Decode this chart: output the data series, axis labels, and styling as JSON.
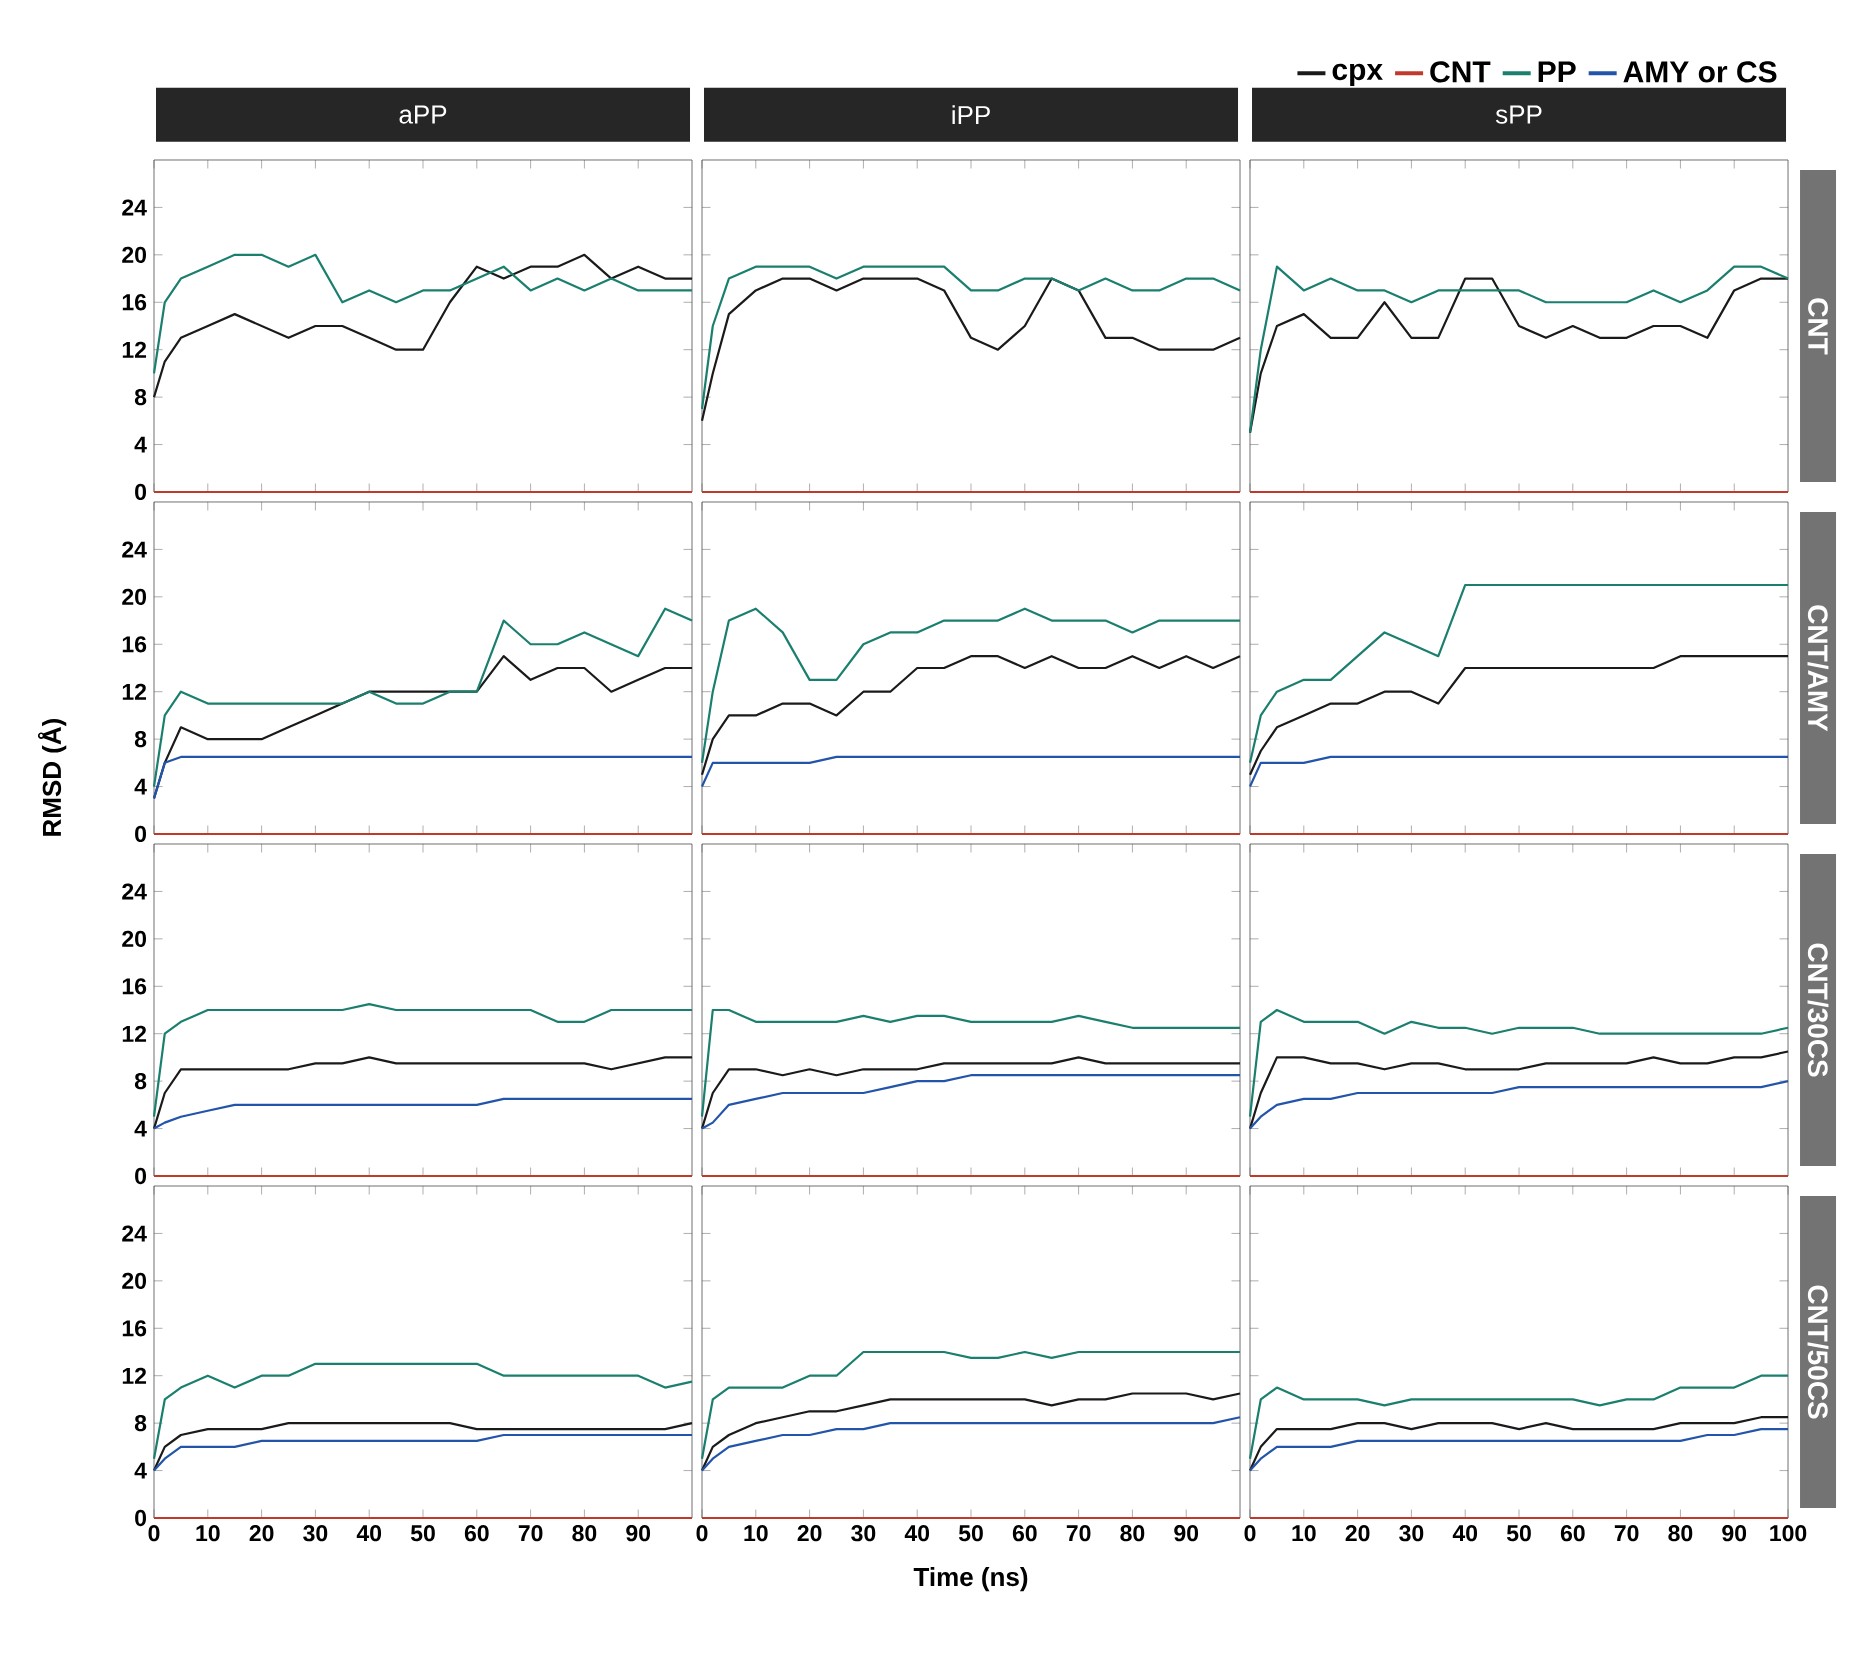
{
  "chart_data": [
    {
      "type": "line",
      "title": "aPP",
      "x": [
        0,
        2,
        5,
        10,
        15,
        20,
        25,
        30,
        35,
        40,
        45,
        50,
        55,
        60,
        65,
        70,
        75,
        80,
        85,
        90,
        95,
        100
      ],
      "xlim": [
        0,
        100
      ],
      "ylim": [
        0,
        28
      ],
      "xticks": [
        0,
        10,
        20,
        30,
        40,
        50,
        60,
        70,
        80,
        90
      ],
      "yticks": [
        0,
        4,
        8,
        12,
        16,
        20,
        24
      ],
      "tick_labels": "y",
      "series": [
        {
          "color": "#1a1a1a",
          "values": [
            8,
            11,
            13,
            14,
            15,
            14,
            13,
            14,
            14,
            13,
            12,
            12,
            16,
            19,
            18,
            19,
            19,
            20,
            18,
            19,
            18,
            18
          ]
        },
        {
          "color": "#c0392b",
          "values": [
            0,
            0,
            0,
            0,
            0,
            0,
            0,
            0,
            0,
            0,
            0,
            0,
            0,
            0,
            0,
            0,
            0,
            0,
            0,
            0,
            0,
            0
          ]
        },
        {
          "color": "#1a7f6e",
          "values": [
            10,
            16,
            18,
            19,
            20,
            20,
            19,
            20,
            16,
            17,
            16,
            17,
            17,
            18,
            19,
            17,
            18,
            17,
            18,
            17,
            17,
            17
          ]
        }
      ]
    },
    {
      "type": "line",
      "title": "iPP",
      "x": [
        0,
        2,
        5,
        10,
        15,
        20,
        25,
        30,
        35,
        40,
        45,
        50,
        55,
        60,
        65,
        70,
        75,
        80,
        85,
        90,
        95,
        100
      ],
      "xlim": [
        0,
        100
      ],
      "ylim": [
        0,
        28
      ],
      "xticks": [
        0,
        10,
        20,
        30,
        40,
        50,
        60,
        70,
        80,
        90
      ],
      "yticks": [
        0,
        4,
        8,
        12,
        16,
        20,
        24
      ],
      "tick_labels": false,
      "series": [
        {
          "color": "#1a1a1a",
          "values": [
            6,
            10,
            15,
            17,
            18,
            18,
            17,
            18,
            18,
            18,
            17,
            13,
            12,
            14,
            18,
            17,
            13,
            13,
            12,
            12,
            12,
            13
          ]
        },
        {
          "color": "#c0392b",
          "values": [
            0,
            0,
            0,
            0,
            0,
            0,
            0,
            0,
            0,
            0,
            0,
            0,
            0,
            0,
            0,
            0,
            0,
            0,
            0,
            0,
            0,
            0
          ]
        },
        {
          "color": "#1a7f6e",
          "values": [
            7,
            14,
            18,
            19,
            19,
            19,
            18,
            19,
            19,
            19,
            19,
            17,
            17,
            18,
            18,
            17,
            18,
            17,
            17,
            18,
            18,
            17
          ]
        }
      ]
    },
    {
      "type": "line",
      "title": "sPP",
      "y2label": "CNT",
      "legend": "top right",
      "x": [
        0,
        2,
        5,
        10,
        15,
        20,
        25,
        30,
        35,
        40,
        45,
        50,
        55,
        60,
        65,
        70,
        75,
        80,
        85,
        90,
        95,
        100
      ],
      "xlim": [
        0,
        100
      ],
      "ylim": [
        0,
        28
      ],
      "xticks": [
        0,
        10,
        20,
        30,
        40,
        50,
        60,
        70,
        80,
        90
      ],
      "yticks": [
        0,
        4,
        8,
        12,
        16,
        20,
        24
      ],
      "tick_labels": false,
      "series": [
        {
          "name": "cpx",
          "color": "#1a1a1a",
          "values": [
            5,
            10,
            14,
            15,
            13,
            13,
            16,
            13,
            13,
            18,
            18,
            14,
            13,
            14,
            13,
            13,
            14,
            14,
            13,
            17,
            18,
            18
          ]
        },
        {
          "name": "CNT",
          "color": "#c0392b",
          "values": [
            0,
            0,
            0,
            0,
            0,
            0,
            0,
            0,
            0,
            0,
            0,
            0,
            0,
            0,
            0,
            0,
            0,
            0,
            0,
            0,
            0,
            0
          ]
        },
        {
          "name": "PP",
          "color": "#1a7f6e",
          "values": [
            5,
            12,
            19,
            17,
            18,
            17,
            17,
            16,
            17,
            17,
            17,
            17,
            16,
            16,
            16,
            16,
            17,
            16,
            17,
            19,
            19,
            18
          ]
        },
        {
          "name": "AMY or CS",
          "color": "#2255aa",
          "values": [
            null,
            null,
            null,
            null,
            null,
            null,
            null,
            null,
            null,
            null,
            null,
            null,
            null,
            null,
            null,
            null,
            null,
            null,
            null,
            null,
            null,
            null
          ]
        }
      ]
    },
    {
      "type": "line",
      "x": [
        0,
        2,
        5,
        10,
        15,
        20,
        25,
        30,
        35,
        40,
        45,
        50,
        55,
        60,
        65,
        70,
        75,
        80,
        85,
        90,
        95,
        100
      ],
      "xlim": [
        0,
        100
      ],
      "ylim": [
        0,
        28
      ],
      "xticks": [
        0,
        10,
        20,
        30,
        40,
        50,
        60,
        70,
        80,
        90
      ],
      "yticks": [
        0,
        4,
        8,
        12,
        16,
        20,
        24
      ],
      "tick_labels": "y",
      "series": [
        {
          "color": "#1a1a1a",
          "values": [
            3,
            6,
            9,
            8,
            8,
            8,
            9,
            10,
            11,
            12,
            12,
            12,
            12,
            12,
            15,
            13,
            14,
            14,
            12,
            13,
            14,
            14
          ]
        },
        {
          "color": "#c0392b",
          "values": [
            0,
            0,
            0,
            0,
            0,
            0,
            0,
            0,
            0,
            0,
            0,
            0,
            0,
            0,
            0,
            0,
            0,
            0,
            0,
            0,
            0,
            0
          ]
        },
        {
          "color": "#1a7f6e",
          "values": [
            4,
            10,
            12,
            11,
            11,
            11,
            11,
            11,
            11,
            12,
            11,
            11,
            12,
            12,
            18,
            16,
            16,
            17,
            16,
            15,
            19,
            18
          ]
        },
        {
          "color": "#2255aa",
          "values": [
            3,
            6,
            6.5,
            6.5,
            6.5,
            6.5,
            6.5,
            6.5,
            6.5,
            6.5,
            6.5,
            6.5,
            6.5,
            6.5,
            6.5,
            6.5,
            6.5,
            6.5,
            6.5,
            6.5,
            6.5,
            6.5
          ]
        }
      ]
    },
    {
      "type": "line",
      "x": [
        0,
        2,
        5,
        10,
        15,
        20,
        25,
        30,
        35,
        40,
        45,
        50,
        55,
        60,
        65,
        70,
        75,
        80,
        85,
        90,
        95,
        100
      ],
      "xlim": [
        0,
        100
      ],
      "ylim": [
        0,
        28
      ],
      "xticks": [
        0,
        10,
        20,
        30,
        40,
        50,
        60,
        70,
        80,
        90
      ],
      "yticks": [
        0,
        4,
        8,
        12,
        16,
        20,
        24
      ],
      "tick_labels": false,
      "series": [
        {
          "color": "#1a1a1a",
          "values": [
            5,
            8,
            10,
            10,
            11,
            11,
            10,
            12,
            12,
            14,
            14,
            15,
            15,
            14,
            15,
            14,
            14,
            15,
            14,
            15,
            14,
            15
          ]
        },
        {
          "color": "#c0392b",
          "values": [
            0,
            0,
            0,
            0,
            0,
            0,
            0,
            0,
            0,
            0,
            0,
            0,
            0,
            0,
            0,
            0,
            0,
            0,
            0,
            0,
            0,
            0
          ]
        },
        {
          "color": "#1a7f6e",
          "values": [
            6,
            12,
            18,
            19,
            17,
            13,
            13,
            16,
            17,
            17,
            18,
            18,
            18,
            19,
            18,
            18,
            18,
            17,
            18,
            18,
            18,
            18
          ]
        },
        {
          "color": "#2255aa",
          "values": [
            4,
            6,
            6,
            6,
            6,
            6,
            6.5,
            6.5,
            6.5,
            6.5,
            6.5,
            6.5,
            6.5,
            6.5,
            6.5,
            6.5,
            6.5,
            6.5,
            6.5,
            6.5,
            6.5,
            6.5
          ]
        }
      ]
    },
    {
      "type": "line",
      "y2label": "CNT/AMY",
      "x": [
        0,
        2,
        5,
        10,
        15,
        20,
        25,
        30,
        35,
        40,
        45,
        50,
        55,
        60,
        65,
        70,
        75,
        80,
        85,
        90,
        95,
        100
      ],
      "xlim": [
        0,
        100
      ],
      "ylim": [
        0,
        28
      ],
      "xticks": [
        0,
        10,
        20,
        30,
        40,
        50,
        60,
        70,
        80,
        90
      ],
      "yticks": [
        0,
        4,
        8,
        12,
        16,
        20,
        24
      ],
      "tick_labels": false,
      "series": [
        {
          "color": "#1a1a1a",
          "values": [
            5,
            7,
            9,
            10,
            11,
            11,
            12,
            12,
            11,
            14,
            14,
            14,
            14,
            14,
            14,
            14,
            14,
            15,
            15,
            15,
            15,
            15
          ]
        },
        {
          "color": "#c0392b",
          "values": [
            0,
            0,
            0,
            0,
            0,
            0,
            0,
            0,
            0,
            0,
            0,
            0,
            0,
            0,
            0,
            0,
            0,
            0,
            0,
            0,
            0,
            0
          ]
        },
        {
          "color": "#1a7f6e",
          "values": [
            6,
            10,
            12,
            13,
            13,
            15,
            17,
            16,
            15,
            21,
            21,
            21,
            21,
            21,
            21,
            21,
            21,
            21,
            21,
            21,
            21,
            21
          ]
        },
        {
          "color": "#2255aa",
          "values": [
            4,
            6,
            6,
            6,
            6.5,
            6.5,
            6.5,
            6.5,
            6.5,
            6.5,
            6.5,
            6.5,
            6.5,
            6.5,
            6.5,
            6.5,
            6.5,
            6.5,
            6.5,
            6.5,
            6.5,
            6.5
          ]
        }
      ]
    },
    {
      "type": "line",
      "ylabel": "RMSD (Å)",
      "x": [
        0,
        2,
        5,
        10,
        15,
        20,
        25,
        30,
        35,
        40,
        45,
        50,
        55,
        60,
        65,
        70,
        75,
        80,
        85,
        90,
        95,
        100
      ],
      "xlim": [
        0,
        100
      ],
      "ylim": [
        0,
        28
      ],
      "xticks": [
        0,
        10,
        20,
        30,
        40,
        50,
        60,
        70,
        80,
        90
      ],
      "yticks": [
        0,
        4,
        8,
        12,
        16,
        20,
        24
      ],
      "tick_labels": "y",
      "series": [
        {
          "color": "#1a1a1a",
          "values": [
            4,
            7,
            9,
            9,
            9,
            9,
            9,
            9.5,
            9.5,
            10,
            9.5,
            9.5,
            9.5,
            9.5,
            9.5,
            9.5,
            9.5,
            9.5,
            9,
            9.5,
            10,
            10
          ]
        },
        {
          "color": "#c0392b",
          "values": [
            0,
            0,
            0,
            0,
            0,
            0,
            0,
            0,
            0,
            0,
            0,
            0,
            0,
            0,
            0,
            0,
            0,
            0,
            0,
            0,
            0,
            0
          ]
        },
        {
          "color": "#1a7f6e",
          "values": [
            5,
            12,
            13,
            14,
            14,
            14,
            14,
            14,
            14,
            14.5,
            14,
            14,
            14,
            14,
            14,
            14,
            13,
            13,
            14,
            14,
            14,
            14
          ]
        },
        {
          "color": "#2255aa",
          "values": [
            4,
            4.5,
            5,
            5.5,
            6,
            6,
            6,
            6,
            6,
            6,
            6,
            6,
            6,
            6,
            6.5,
            6.5,
            6.5,
            6.5,
            6.5,
            6.5,
            6.5,
            6.5
          ]
        }
      ]
    },
    {
      "type": "line",
      "x": [
        0,
        2,
        5,
        10,
        15,
        20,
        25,
        30,
        35,
        40,
        45,
        50,
        55,
        60,
        65,
        70,
        75,
        80,
        85,
        90,
        95,
        100
      ],
      "xlim": [
        0,
        100
      ],
      "ylim": [
        0,
        28
      ],
      "xticks": [
        0,
        10,
        20,
        30,
        40,
        50,
        60,
        70,
        80,
        90
      ],
      "yticks": [
        0,
        4,
        8,
        12,
        16,
        20,
        24
      ],
      "tick_labels": false,
      "series": [
        {
          "color": "#1a1a1a",
          "values": [
            4,
            7,
            9,
            9,
            8.5,
            9,
            8.5,
            9,
            9,
            9,
            9.5,
            9.5,
            9.5,
            9.5,
            9.5,
            10,
            9.5,
            9.5,
            9.5,
            9.5,
            9.5,
            9.5
          ]
        },
        {
          "color": "#c0392b",
          "values": [
            0,
            0,
            0,
            0,
            0,
            0,
            0,
            0,
            0,
            0,
            0,
            0,
            0,
            0,
            0,
            0,
            0,
            0,
            0,
            0,
            0,
            0
          ]
        },
        {
          "color": "#1a7f6e",
          "values": [
            5,
            14,
            14,
            13,
            13,
            13,
            13,
            13.5,
            13,
            13.5,
            13.5,
            13,
            13,
            13,
            13,
            13.5,
            13,
            12.5,
            12.5,
            12.5,
            12.5,
            12.5
          ]
        },
        {
          "color": "#2255aa",
          "values": [
            4,
            4.5,
            6,
            6.5,
            7,
            7,
            7,
            7,
            7.5,
            8,
            8,
            8.5,
            8.5,
            8.5,
            8.5,
            8.5,
            8.5,
            8.5,
            8.5,
            8.5,
            8.5,
            8.5
          ]
        }
      ]
    },
    {
      "type": "line",
      "y2label": "CNT/30CS",
      "x": [
        0,
        2,
        5,
        10,
        15,
        20,
        25,
        30,
        35,
        40,
        45,
        50,
        55,
        60,
        65,
        70,
        75,
        80,
        85,
        90,
        95,
        100
      ],
      "xlim": [
        0,
        100
      ],
      "ylim": [
        0,
        28
      ],
      "xticks": [
        0,
        10,
        20,
        30,
        40,
        50,
        60,
        70,
        80,
        90
      ],
      "yticks": [
        0,
        4,
        8,
        12,
        16,
        20,
        24
      ],
      "tick_labels": false,
      "series": [
        {
          "color": "#1a1a1a",
          "values": [
            4,
            7,
            10,
            10,
            9.5,
            9.5,
            9,
            9.5,
            9.5,
            9,
            9,
            9,
            9.5,
            9.5,
            9.5,
            9.5,
            10,
            9.5,
            9.5,
            10,
            10,
            10.5
          ]
        },
        {
          "color": "#c0392b",
          "values": [
            0,
            0,
            0,
            0,
            0,
            0,
            0,
            0,
            0,
            0,
            0,
            0,
            0,
            0,
            0,
            0,
            0,
            0,
            0,
            0,
            0,
            0
          ]
        },
        {
          "color": "#1a7f6e",
          "values": [
            5,
            13,
            14,
            13,
            13,
            13,
            12,
            13,
            12.5,
            12.5,
            12,
            12.5,
            12.5,
            12.5,
            12,
            12,
            12,
            12,
            12,
            12,
            12,
            12.5
          ]
        },
        {
          "color": "#2255aa",
          "values": [
            4,
            5,
            6,
            6.5,
            6.5,
            7,
            7,
            7,
            7,
            7,
            7,
            7.5,
            7.5,
            7.5,
            7.5,
            7.5,
            7.5,
            7.5,
            7.5,
            7.5,
            7.5,
            8
          ]
        }
      ]
    },
    {
      "type": "line",
      "x": [
        0,
        2,
        5,
        10,
        15,
        20,
        25,
        30,
        35,
        40,
        45,
        50,
        55,
        60,
        65,
        70,
        75,
        80,
        85,
        90,
        95,
        100
      ],
      "xlim": [
        0,
        100
      ],
      "ylim": [
        0,
        28
      ],
      "xticks": [
        0,
        10,
        20,
        30,
        40,
        50,
        60,
        70,
        80,
        90
      ],
      "yticks": [
        0,
        4,
        8,
        12,
        16,
        20,
        24
      ],
      "series": [
        {
          "color": "#1a1a1a",
          "values": [
            4,
            6,
            7,
            7.5,
            7.5,
            7.5,
            8,
            8,
            8,
            8,
            8,
            8,
            8,
            7.5,
            7.5,
            7.5,
            7.5,
            7.5,
            7.5,
            7.5,
            7.5,
            8
          ]
        },
        {
          "color": "#c0392b",
          "values": [
            0,
            0,
            0,
            0,
            0,
            0,
            0,
            0,
            0,
            0,
            0,
            0,
            0,
            0,
            0,
            0,
            0,
            0,
            0,
            0,
            0,
            0
          ]
        },
        {
          "color": "#1a7f6e",
          "values": [
            5,
            10,
            11,
            12,
            11,
            12,
            12,
            13,
            13,
            13,
            13,
            13,
            13,
            13,
            12,
            12,
            12,
            12,
            12,
            12,
            11,
            11.5
          ]
        },
        {
          "color": "#2255aa",
          "values": [
            4,
            5,
            6,
            6,
            6,
            6.5,
            6.5,
            6.5,
            6.5,
            6.5,
            6.5,
            6.5,
            6.5,
            6.5,
            7,
            7,
            7,
            7,
            7,
            7,
            7,
            7
          ]
        }
      ]
    },
    {
      "type": "line",
      "xlabel": "Time (ns)",
      "x": [
        0,
        2,
        5,
        10,
        15,
        20,
        25,
        30,
        35,
        40,
        45,
        50,
        55,
        60,
        65,
        70,
        75,
        80,
        85,
        90,
        95,
        100
      ],
      "xlim": [
        0,
        100
      ],
      "ylim": [
        0,
        28
      ],
      "xticks": [
        0,
        10,
        20,
        30,
        40,
        50,
        60,
        70,
        80,
        90
      ],
      "yticks": [
        0,
        4,
        8,
        12,
        16,
        20,
        24
      ],
      "tick_labels": "x",
      "series": [
        {
          "color": "#1a1a1a",
          "values": [
            4,
            6,
            7,
            8,
            8.5,
            9,
            9,
            9.5,
            10,
            10,
            10,
            10,
            10,
            10,
            9.5,
            10,
            10,
            10.5,
            10.5,
            10.5,
            10,
            10.5
          ]
        },
        {
          "color": "#c0392b",
          "values": [
            0,
            0,
            0,
            0,
            0,
            0,
            0,
            0,
            0,
            0,
            0,
            0,
            0,
            0,
            0,
            0,
            0,
            0,
            0,
            0,
            0,
            0
          ]
        },
        {
          "color": "#1a7f6e",
          "values": [
            5,
            10,
            11,
            11,
            11,
            12,
            12,
            14,
            14,
            14,
            14,
            13.5,
            13.5,
            14,
            13.5,
            14,
            14,
            14,
            14,
            14,
            14,
            14
          ]
        },
        {
          "color": "#2255aa",
          "values": [
            4,
            5,
            6,
            6.5,
            7,
            7,
            7.5,
            7.5,
            8,
            8,
            8,
            8,
            8,
            8,
            8,
            8,
            8,
            8,
            8,
            8,
            8,
            8.5
          ]
        }
      ]
    },
    {
      "type": "line",
      "y2label": "CNT/50CS",
      "x": [
        0,
        2,
        5,
        10,
        15,
        20,
        25,
        30,
        35,
        40,
        45,
        50,
        55,
        60,
        65,
        70,
        75,
        80,
        85,
        90,
        95,
        100
      ],
      "xlim": [
        0,
        100
      ],
      "ylim": [
        0,
        28
      ],
      "xticks": [
        0,
        10,
        20,
        30,
        40,
        50,
        60,
        70,
        80,
        90,
        100
      ],
      "yticks": [
        0,
        4,
        8,
        12,
        16,
        20,
        24
      ],
      "tick_labels": "x",
      "series": [
        {
          "color": "#1a1a1a",
          "values": [
            4,
            6,
            7.5,
            7.5,
            7.5,
            8,
            8,
            7.5,
            8,
            8,
            8,
            7.5,
            8,
            7.5,
            7.5,
            7.5,
            7.5,
            8,
            8,
            8,
            8.5,
            8.5
          ]
        },
        {
          "color": "#c0392b",
          "values": [
            0,
            0,
            0,
            0,
            0,
            0,
            0,
            0,
            0,
            0,
            0,
            0,
            0,
            0,
            0,
            0,
            0,
            0,
            0,
            0,
            0,
            0
          ]
        },
        {
          "color": "#1a7f6e",
          "values": [
            5,
            10,
            11,
            10,
            10,
            10,
            9.5,
            10,
            10,
            10,
            10,
            10,
            10,
            10,
            9.5,
            10,
            10,
            11,
            11,
            11,
            12,
            12
          ]
        },
        {
          "color": "#2255aa",
          "values": [
            4,
            5,
            6,
            6,
            6,
            6.5,
            6.5,
            6.5,
            6.5,
            6.5,
            6.5,
            6.5,
            6.5,
            6.5,
            6.5,
            6.5,
            6.5,
            6.5,
            7,
            7,
            7.5,
            7.5
          ]
        }
      ]
    }
  ]
}
